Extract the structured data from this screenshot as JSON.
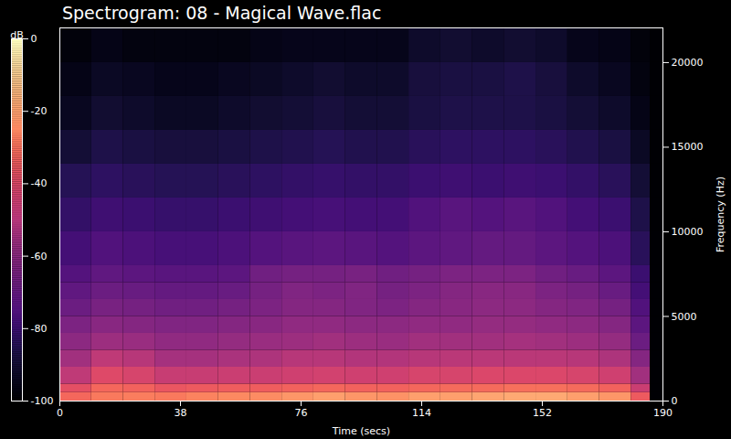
{
  "chart_data": {
    "type": "heatmap",
    "title": "Spectrogram: 08 - Magical Wave.flac",
    "x_label": "Time (secs)",
    "y_label": "Frequency (Hz)",
    "xlim": [
      0,
      190
    ],
    "xticks": [
      0,
      38,
      76,
      114,
      152,
      190
    ],
    "ylim": [
      0,
      22050
    ],
    "yticks": [
      0,
      5000,
      10000,
      15000,
      20000
    ],
    "color": "magma",
    "x_bins": [
      0,
      10,
      20,
      30,
      40,
      50,
      60,
      70,
      80,
      90,
      100,
      110,
      120,
      130,
      140,
      150,
      160,
      170,
      180,
      186,
      190
    ],
    "y_bins": [
      0,
      500,
      1000,
      2000,
      3000,
      4000,
      5000,
      6000,
      7000,
      8000,
      10000,
      12000,
      14000,
      16000,
      18000,
      20000,
      22050
    ],
    "cells": [
      [
        -32,
        -28,
        -27,
        -28,
        -26,
        -25,
        -24,
        -22,
        -20,
        -22,
        -23,
        -20,
        -20,
        -19,
        -18,
        -18,
        -20,
        -22,
        -35,
        -100
      ],
      [
        -38,
        -32,
        -33,
        -36,
        -35,
        -34,
        -34,
        -33,
        -32,
        -33,
        -33,
        -32,
        -31,
        -31,
        -30,
        -30,
        -31,
        -33,
        -45,
        -100
      ],
      [
        -48,
        -40,
        -42,
        -46,
        -46,
        -45,
        -45,
        -44,
        -43,
        -44,
        -44,
        -42,
        -42,
        -41,
        -41,
        -41,
        -42,
        -44,
        -55,
        -100
      ],
      [
        -55,
        -48,
        -50,
        -54,
        -54,
        -53,
        -52,
        -50,
        -50,
        -51,
        -51,
        -50,
        -49,
        -49,
        -49,
        -49,
        -50,
        -52,
        -62,
        -100
      ],
      [
        -60,
        -56,
        -57,
        -59,
        -59,
        -58,
        -57,
        -56,
        -55,
        -56,
        -57,
        -55,
        -55,
        -55,
        -54,
        -55,
        -56,
        -58,
        -68,
        -100
      ],
      [
        -64,
        -61,
        -62,
        -63,
        -63,
        -62,
        -61,
        -59,
        -59,
        -60,
        -60,
        -59,
        -59,
        -58,
        -58,
        -59,
        -60,
        -62,
        -72,
        -100
      ],
      [
        -68,
        -65,
        -66,
        -67,
        -67,
        -66,
        -64,
        -62,
        -62,
        -63,
        -64,
        -62,
        -61,
        -60,
        -60,
        -62,
        -63,
        -66,
        -75,
        -100
      ],
      [
        -71,
        -68,
        -69,
        -70,
        -70,
        -69,
        -66,
        -63,
        -64,
        -63,
        -66,
        -64,
        -62,
        -61,
        -61,
        -64,
        -66,
        -69,
        -78,
        -100
      ],
      [
        -74,
        -71,
        -72,
        -73,
        -73,
        -72,
        -67,
        -66,
        -66,
        -65,
        -67,
        -66,
        -64,
        -64,
        -64,
        -67,
        -69,
        -72,
        -80,
        -100
      ],
      [
        -78,
        -75,
        -76,
        -77,
        -77,
        -76,
        -74,
        -73,
        -72,
        -73,
        -74,
        -72,
        -71,
        -70,
        -70,
        -72,
        -74,
        -76,
        -84,
        -100
      ],
      [
        -82,
        -79,
        -80,
        -81,
        -81,
        -80,
        -79,
        -78,
        -77,
        -78,
        -78,
        -75,
        -73,
        -74,
        -73,
        -75,
        -78,
        -80,
        -87,
        -100
      ],
      [
        -85,
        -83,
        -84,
        -85,
        -85,
        -84,
        -83,
        -82,
        -81,
        -82,
        -82,
        -80,
        -79,
        -80,
        -79,
        -80,
        -82,
        -84,
        -90,
        -100
      ],
      [
        -90,
        -87,
        -88,
        -89,
        -89,
        -88,
        -87,
        -86,
        -85,
        -86,
        -86,
        -84,
        -83,
        -83,
        -83,
        -84,
        -86,
        -88,
        -93,
        -100
      ],
      [
        -94,
        -91,
        -92,
        -93,
        -93,
        -92,
        -91,
        -90,
        -89,
        -90,
        -90,
        -88,
        -87,
        -87,
        -87,
        -88,
        -90,
        -92,
        -96,
        -100
      ],
      [
        -96,
        -93,
        -94,
        -95,
        -95,
        -94,
        -93,
        -92,
        -91,
        -92,
        -92,
        -89,
        -88,
        -88,
        -87,
        -89,
        -92,
        -94,
        -97,
        -100
      ],
      [
        -98,
        -96,
        -97,
        -97,
        -97,
        -97,
        -96,
        -95,
        -95,
        -95,
        -95,
        -92,
        -91,
        -92,
        -91,
        -92,
        -95,
        -96,
        -98,
        -100
      ]
    ],
    "colorbar_label": "dB",
    "colorbar_range": [
      -100,
      0
    ],
    "colorbar_ticks": [
      0,
      -20,
      -40,
      -60,
      -80,
      -100
    ]
  }
}
